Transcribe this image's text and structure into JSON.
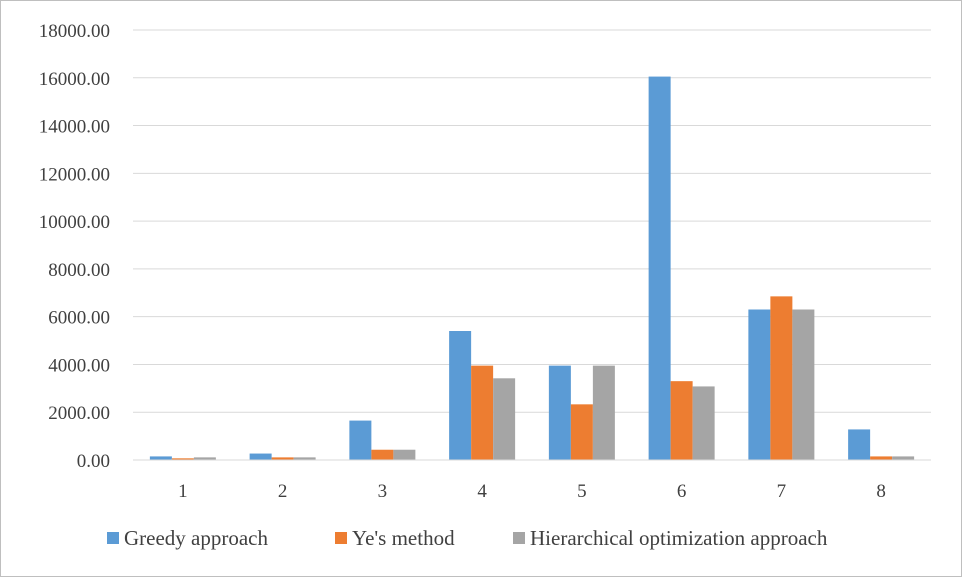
{
  "chart_data": {
    "type": "bar",
    "title": "",
    "xlabel": "",
    "ylabel": "",
    "categories": [
      "1",
      "2",
      "3",
      "4",
      "5",
      "6",
      "7",
      "8"
    ],
    "ylim": [
      0,
      18000
    ],
    "yticks": [
      "0.00",
      "2000.00",
      "4000.00",
      "6000.00",
      "8000.00",
      "10000.00",
      "12000.00",
      "14000.00",
      "16000.00",
      "18000.00"
    ],
    "grid": true,
    "legend_position": "bottom",
    "series": [
      {
        "name": "Greedy approach",
        "color": "#5b9bd5",
        "values": [
          150,
          270,
          1650,
          5400,
          3950,
          16050,
          6300,
          1280
        ]
      },
      {
        "name": "Ye's method",
        "color": "#ed7d31",
        "values": [
          70,
          110,
          430,
          3950,
          2330,
          3300,
          6850,
          150
        ]
      },
      {
        "name": "Hierarchical optimization approach",
        "color": "#a5a5a5",
        "values": [
          110,
          110,
          430,
          3420,
          3950,
          3080,
          6300,
          150
        ]
      }
    ]
  }
}
